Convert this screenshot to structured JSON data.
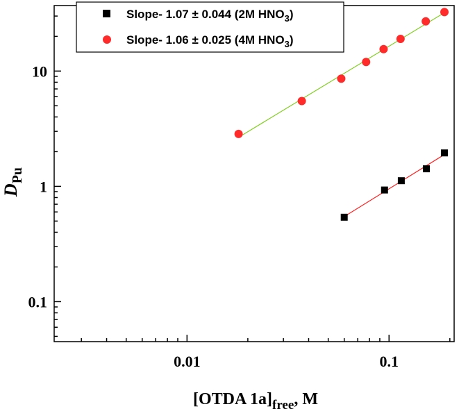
{
  "chart_data": {
    "type": "scatter",
    "xscale": "log",
    "yscale": "log",
    "xlim": [
      0.0022,
      0.21
    ],
    "ylim": [
      0.045,
      37
    ],
    "xticks": [
      {
        "value": 0.01,
        "label": "0.01"
      },
      {
        "value": 0.1,
        "label": "0.1"
      }
    ],
    "yticks": [
      {
        "value": 0.1,
        "label": "0.1"
      },
      {
        "value": 1,
        "label": "1"
      },
      {
        "value": 10,
        "label": "10"
      }
    ],
    "xlabel": {
      "main": "[OTDA 1a]",
      "sub": "free",
      "suffix": ", M"
    },
    "ylabel": {
      "main": "D",
      "sub": "Pu"
    },
    "grid": false,
    "legend_position": "top",
    "series": [
      {
        "name": "Slope-  1.07 ± 0.044 (2M HNO",
        "name_sub": "3",
        "name_end": ")",
        "marker": "square",
        "color": "#000000",
        "line_color": "#ff2020",
        "x": [
          0.06,
          0.095,
          0.115,
          0.153,
          0.188
        ],
        "y": [
          0.54,
          0.93,
          1.12,
          1.42,
          1.95
        ]
      },
      {
        "name": "Slope-  1.06 ± 0.025 (4M HNO",
        "name_sub": "3",
        "name_end": ")",
        "marker": "circle",
        "color": "#ff2a2a",
        "line_color": "#80d020",
        "x": [
          0.018,
          0.037,
          0.058,
          0.077,
          0.094,
          0.114,
          0.152,
          0.188
        ],
        "y": [
          2.85,
          5.5,
          8.6,
          12.0,
          15.5,
          19.0,
          27.0,
          32.5
        ]
      }
    ]
  }
}
